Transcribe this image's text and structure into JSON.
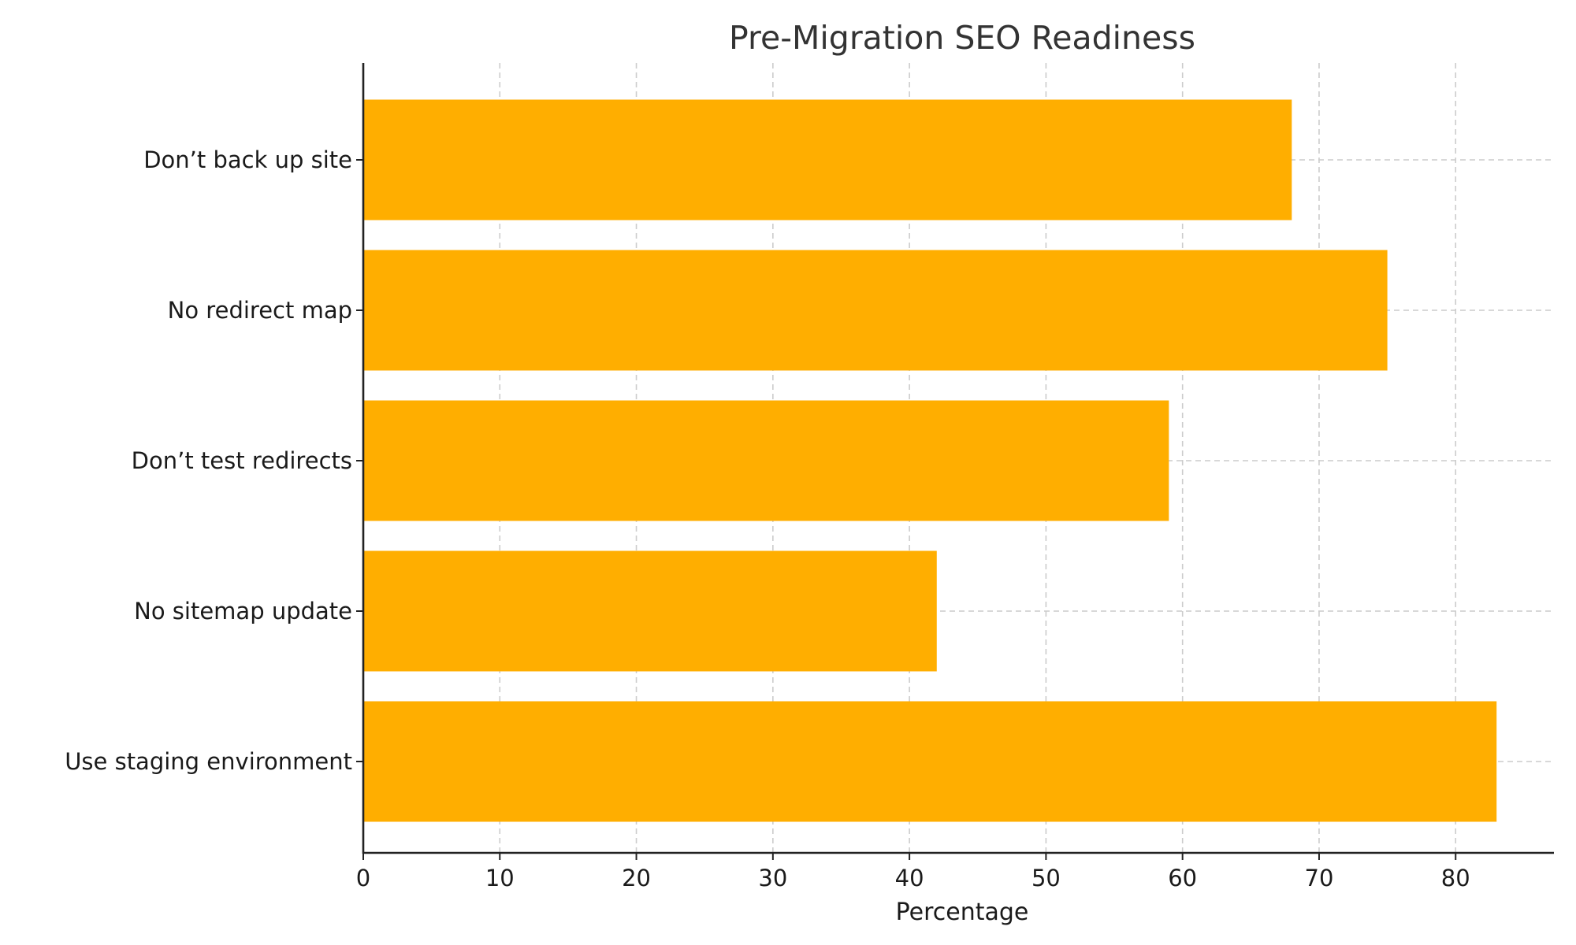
{
  "chart_data": {
    "type": "bar",
    "orientation": "horizontal",
    "title": "Pre-Migration SEO Readiness",
    "xlabel": "Percentage",
    "ylabel": "",
    "categories": [
      "Don’t back up site",
      "No redirect map",
      "Don’t test redirects",
      "No sitemap update",
      "Use staging environment"
    ],
    "values": [
      68,
      75,
      59,
      42,
      83
    ],
    "xlim": [
      0,
      87.2
    ],
    "xticks": [
      0,
      10,
      20,
      30,
      40,
      50,
      60,
      70,
      80
    ],
    "xtick_labels": [
      "0",
      "10",
      "20",
      "30",
      "40",
      "50",
      "60",
      "70",
      "80"
    ],
    "grid": true,
    "legend": null,
    "bar_color": "#FFAE00"
  }
}
